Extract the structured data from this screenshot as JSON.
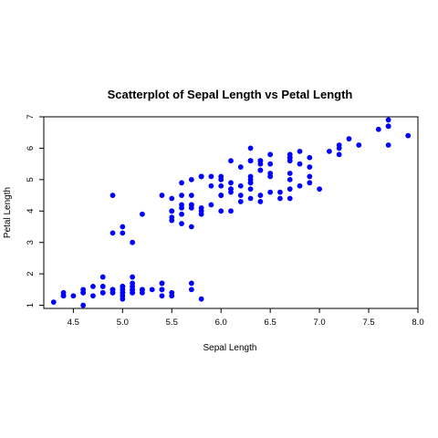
{
  "chart_data": {
    "type": "scatter",
    "title": "Scatterplot of Sepal Length vs Petal Length",
    "xlabel": "Sepal Length",
    "ylabel": "Petal Length",
    "xlim": [
      4.2,
      8.0
    ],
    "ylim": [
      0.9,
      7.0
    ],
    "xticks": [
      4.5,
      5.0,
      5.5,
      6.0,
      6.5,
      7.0,
      7.5,
      8.0
    ],
    "xtick_labels": [
      "4.5",
      "5.0",
      "5.5",
      "6.0",
      "6.5",
      "7.0",
      "7.5",
      "8.0"
    ],
    "yticks": [
      1,
      2,
      3,
      4,
      5,
      6,
      7
    ],
    "ytick_labels": [
      "1",
      "2",
      "3",
      "4",
      "5",
      "6",
      "7"
    ],
    "point_color": "#0000ff",
    "grid": false,
    "legend": "none",
    "series": [
      {
        "x": [
          5.1,
          4.9,
          4.7,
          4.6,
          5.0,
          5.4,
          4.6,
          5.0,
          4.4,
          4.9,
          5.4,
          4.8,
          4.8,
          4.3,
          5.8,
          5.7,
          5.4,
          5.1,
          5.7,
          5.1,
          5.4,
          5.1,
          4.6,
          5.1,
          4.8,
          5.0,
          5.0,
          5.2,
          5.2,
          4.7,
          4.8,
          5.4,
          5.2,
          5.5,
          4.9,
          5.0,
          5.5,
          4.9,
          4.4,
          5.1,
          5.0,
          4.5,
          4.4,
          5.0,
          5.1,
          4.8,
          5.1,
          4.6,
          5.3,
          5.0,
          7.0,
          6.4,
          6.9,
          5.5,
          6.5,
          5.7,
          6.3,
          4.9,
          6.6,
          5.2,
          5.0,
          5.9,
          6.0,
          6.1,
          5.6,
          6.7,
          5.6,
          5.8,
          6.2,
          5.6,
          5.9,
          6.1,
          6.3,
          6.1,
          6.4,
          6.6,
          6.8,
          6.7,
          6.0,
          5.7,
          5.5,
          5.5,
          5.8,
          6.0,
          5.4,
          6.0,
          6.7,
          6.3,
          5.6,
          5.5,
          5.5,
          6.1,
          5.8,
          5.0,
          5.6,
          5.7,
          5.7,
          6.2,
          5.1,
          5.7,
          6.3,
          5.8,
          7.1,
          6.3,
          6.5,
          7.6,
          4.9,
          7.3,
          6.7,
          7.2,
          6.5,
          6.4,
          6.8,
          5.7,
          5.8,
          6.4,
          6.5,
          7.7,
          7.7,
          6.0,
          6.9,
          5.6,
          7.7,
          6.3,
          6.7,
          7.2,
          6.2,
          6.1,
          6.4,
          7.2,
          7.4,
          7.9,
          6.4,
          6.3,
          6.1,
          7.7,
          6.3,
          6.4,
          6.0,
          6.9,
          6.7,
          6.9,
          5.8,
          6.8,
          6.7,
          6.7,
          6.3,
          6.5,
          6.2,
          5.9
        ],
        "y": [
          1.4,
          1.4,
          1.3,
          1.5,
          1.4,
          1.7,
          1.4,
          1.5,
          1.4,
          1.5,
          1.5,
          1.6,
          1.4,
          1.1,
          1.2,
          1.5,
          1.3,
          1.4,
          1.7,
          1.5,
          1.7,
          1.5,
          1.0,
          1.7,
          1.9,
          1.6,
          1.6,
          1.5,
          1.4,
          1.6,
          1.6,
          1.5,
          1.5,
          1.4,
          1.5,
          1.2,
          1.3,
          1.4,
          1.3,
          1.5,
          1.3,
          1.3,
          1.3,
          1.6,
          1.9,
          1.4,
          1.6,
          1.4,
          1.5,
          1.4,
          4.7,
          4.5,
          4.9,
          4.0,
          4.6,
          4.5,
          4.7,
          3.3,
          4.6,
          3.9,
          3.5,
          4.2,
          4.0,
          4.7,
          3.6,
          4.4,
          4.5,
          4.1,
          4.5,
          3.9,
          4.8,
          4.0,
          4.9,
          4.7,
          4.3,
          4.4,
          4.8,
          5.0,
          4.5,
          3.5,
          3.8,
          3.7,
          3.9,
          5.1,
          4.5,
          4.5,
          4.7,
          4.4,
          4.1,
          4.0,
          4.4,
          4.6,
          4.0,
          3.3,
          4.2,
          4.2,
          4.2,
          4.3,
          3.0,
          4.1,
          6.0,
          5.1,
          5.9,
          5.6,
          5.8,
          6.6,
          4.5,
          6.3,
          5.8,
          6.1,
          5.1,
          5.3,
          5.5,
          5.0,
          5.1,
          5.3,
          5.5,
          6.7,
          6.9,
          5.0,
          5.7,
          4.9,
          6.7,
          4.9,
          5.7,
          6.0,
          4.8,
          4.9,
          5.6,
          5.8,
          6.1,
          6.4,
          5.6,
          5.1,
          5.6,
          6.1,
          5.6,
          5.5,
          4.8,
          5.4,
          5.6,
          5.1,
          5.1,
          5.9,
          5.7,
          5.2,
          5.0,
          5.2,
          5.4,
          5.1
        ]
      }
    ]
  }
}
